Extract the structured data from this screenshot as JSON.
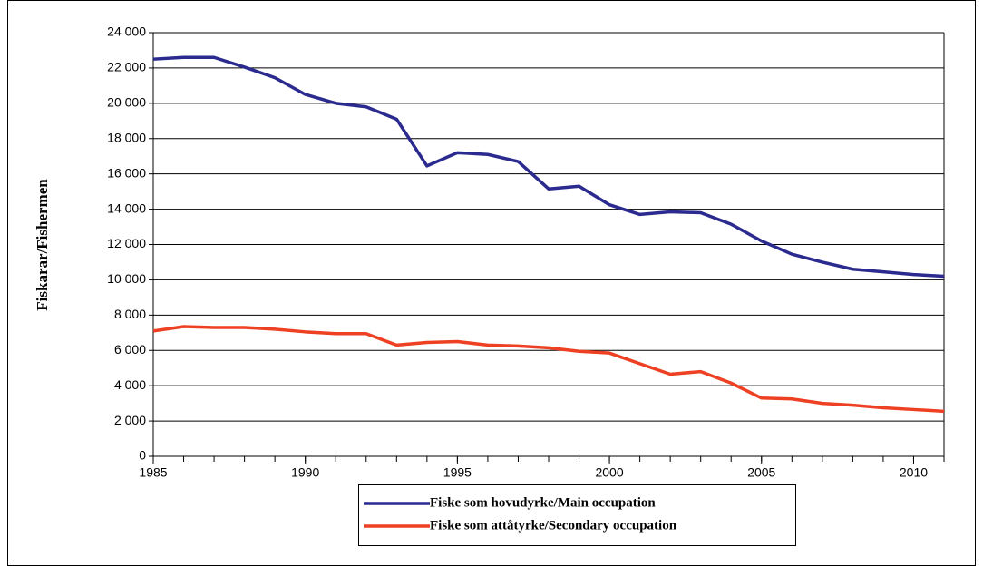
{
  "chart_data": {
    "type": "line",
    "y_label": "Fiskarar/Fishermen",
    "x": [
      1985,
      1986,
      1987,
      1988,
      1989,
      1990,
      1991,
      1992,
      1993,
      1994,
      1995,
      1996,
      1997,
      1998,
      1999,
      2000,
      2001,
      2002,
      2003,
      2004,
      2005,
      2006,
      2007,
      2008,
      2009,
      2010,
      2011
    ],
    "series": [
      {
        "name": "Fiske som hovudyrke/Main occupation",
        "color": "#2b2a8f",
        "values": [
          22500,
          22600,
          22600,
          22050,
          21450,
          20500,
          20000,
          19800,
          19100,
          16450,
          17200,
          17100,
          16700,
          15150,
          15300,
          14250,
          13700,
          13850,
          13800,
          13150,
          12200,
          11450,
          11000,
          10600,
          10450,
          10300,
          10200
        ]
      },
      {
        "name": "Fiske som attåtyrke/Secondary occupation",
        "color": "#ee4123",
        "values": [
          7100,
          7350,
          7300,
          7300,
          7200,
          7050,
          6950,
          6950,
          6300,
          6450,
          6500,
          6300,
          6250,
          6150,
          5950,
          5850,
          5250,
          4650,
          4800,
          4150,
          3300,
          3250,
          3000,
          2900,
          2750,
          2650,
          2550
        ]
      }
    ],
    "xlim": [
      1985,
      2011
    ],
    "xticks": [
      1985,
      1990,
      1995,
      2000,
      2005,
      2010
    ],
    "ylim": [
      0,
      24000
    ],
    "yticks": [
      0,
      {
        "value": 2000,
        "label": "2 000"
      },
      {
        "value": 4000,
        "label": "4 000"
      },
      {
        "value": 6000,
        "label": "6 000"
      },
      {
        "value": 8000,
        "label": "8 000"
      },
      {
        "value": 10000,
        "label": "10 000"
      },
      {
        "value": 12000,
        "label": "12 000"
      },
      {
        "value": 14000,
        "label": "14 000"
      },
      {
        "value": 16000,
        "label": "16 000"
      },
      {
        "value": 18000,
        "label": "18 000"
      },
      {
        "value": 20000,
        "label": "20 000"
      },
      {
        "value": 22000,
        "label": "22 000"
      },
      {
        "value": 24000,
        "label": "24 000"
      }
    ],
    "grid": true
  }
}
